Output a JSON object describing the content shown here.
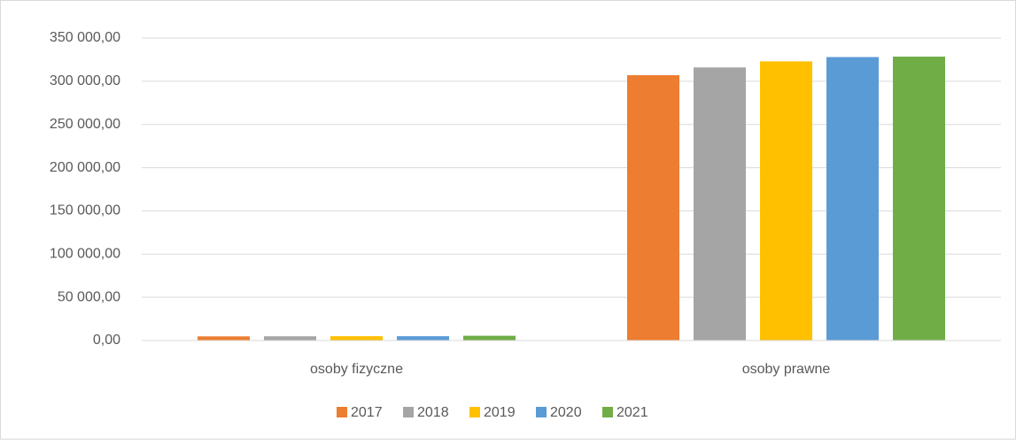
{
  "chart_data": {
    "type": "bar",
    "categories": [
      "osoby fizyczne",
      "osoby prawne"
    ],
    "series": [
      {
        "name": "2017",
        "color": "#ed7d31",
        "values": [
          4800,
          307000
        ]
      },
      {
        "name": "2018",
        "color": "#a5a5a5",
        "values": [
          4900,
          316000
        ]
      },
      {
        "name": "2019",
        "color": "#ffc000",
        "values": [
          5000,
          323000
        ]
      },
      {
        "name": "2020",
        "color": "#5b9bd5",
        "values": [
          5000,
          328000
        ]
      },
      {
        "name": "2021",
        "color": "#70ad47",
        "values": [
          5500,
          328500
        ]
      }
    ],
    "ylim": [
      0,
      350000
    ],
    "yticks": [
      {
        "value": 0,
        "label": "0,00"
      },
      {
        "value": 50000,
        "label": "50 000,00"
      },
      {
        "value": 100000,
        "label": "100 000,00"
      },
      {
        "value": 150000,
        "label": "150 000,00"
      },
      {
        "value": 200000,
        "label": "200 000,00"
      },
      {
        "value": 250000,
        "label": "250 000,00"
      },
      {
        "value": 300000,
        "label": "300 000,00"
      },
      {
        "value": 350000,
        "label": "350 000,00"
      }
    ],
    "grid": true,
    "legend": "bottom"
  }
}
